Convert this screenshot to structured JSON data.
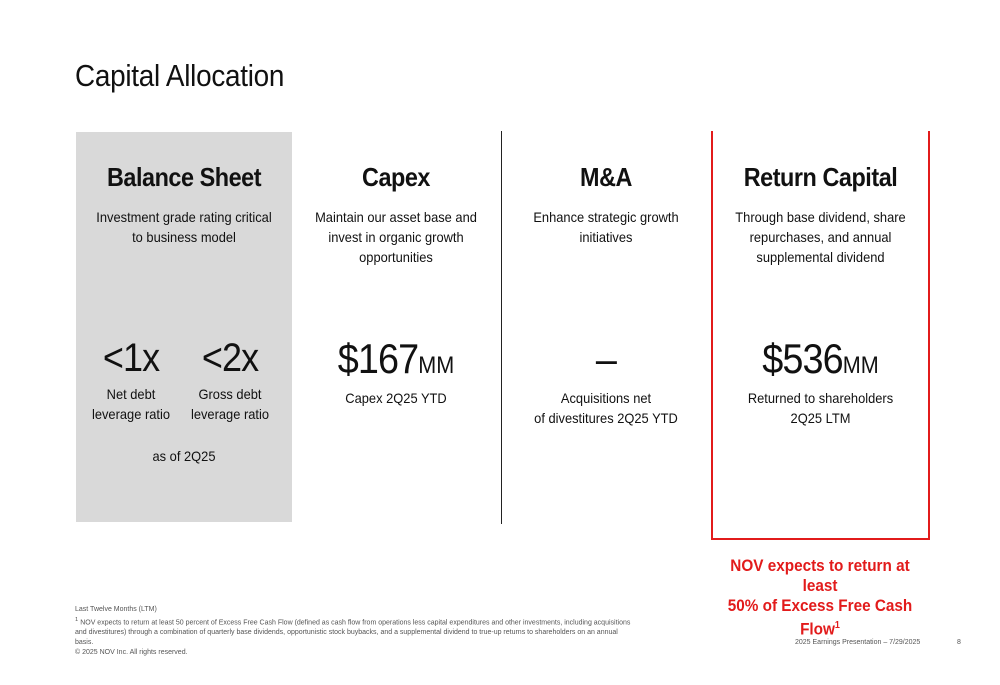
{
  "title": "Capital Allocation",
  "columns": {
    "balance_sheet": {
      "heading": "Balance Sheet",
      "description": "Investment grade rating critical to business model",
      "metrics": [
        {
          "value": "<1x",
          "label": "Net debt leverage ratio"
        },
        {
          "value": "<2x",
          "label": "Gross debt leverage ratio"
        }
      ],
      "as_of": "as of 2Q25"
    },
    "capex": {
      "heading": "Capex",
      "description": "Maintain our asset base and invest in organic growth opportunities",
      "value": "$167",
      "unit": "MM",
      "label": "Capex 2Q25 YTD"
    },
    "ma": {
      "heading": "M&A",
      "description": "Enhance strategic growth initiatives",
      "value": "–",
      "label_line1": "Acquisitions net",
      "label_line2": "of divestitures 2Q25 YTD"
    },
    "return_capital": {
      "heading": "Return Capital",
      "description": "Through base dividend, share repurchases, and annual supplemental dividend",
      "value": "$536",
      "unit": "MM",
      "label_line1": "Returned to shareholders",
      "label_line2": "2Q25 LTM"
    }
  },
  "callout": {
    "line1": "NOV expects to return at least",
    "line2": "50% of Excess Free Cash Flow",
    "sup": "1"
  },
  "footnotes": {
    "ltm": "Last Twelve Months (LTM)",
    "note1_sup": "1",
    "note1": " NOV expects to return at least 50 percent of Excess Free Cash Flow (defined as cash flow from operations less capital expenditures and other investments, including acquisitions and divestitures) through a combination of quarterly base dividends, opportunistic stock buybacks, and a supplemental dividend to true-up returns to shareholders on an annual basis.",
    "copyright": "© 2025 NOV Inc. All rights reserved."
  },
  "footer": {
    "presentation": "2025 Earnings Presentation – 7/29/2025",
    "page": "8"
  },
  "colors": {
    "accent_red": "#e21b1b",
    "panel_gray": "#d9d9d9"
  }
}
